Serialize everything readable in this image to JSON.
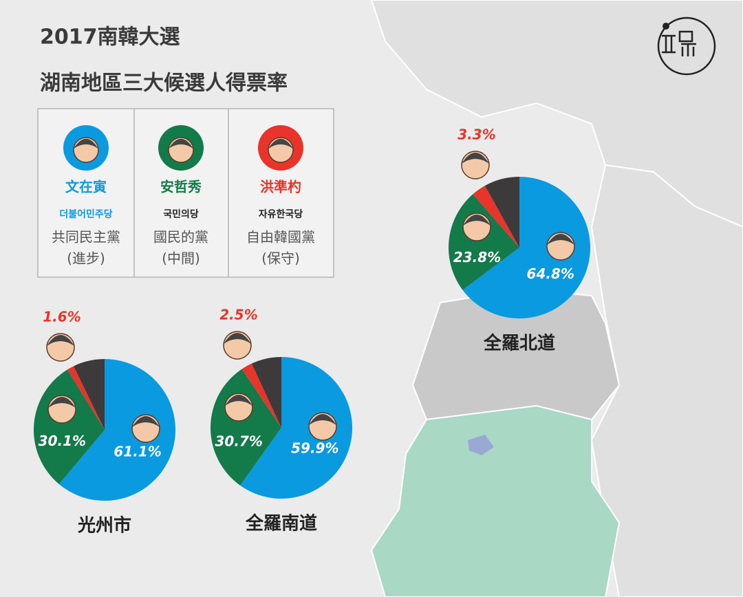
{
  "title": "2017南韓大選",
  "subtitle": "湖南地區三大候選人得票率",
  "legend": [
    {
      "name": "文在寅",
      "party_korean": "더불어민주당",
      "party": "共同民主黨",
      "stance": "(進步)",
      "color": "#0a9ae0"
    },
    {
      "name": "安哲秀",
      "party_korean": "국민의당",
      "party": "國民的黨",
      "stance": "(中間)",
      "color": "#137a4a"
    },
    {
      "name": "洪準杓",
      "party_korean": "자유한국당",
      "party": "自由韓國黨",
      "stance": "(保守)",
      "color": "#e8342a"
    }
  ],
  "chart_data": [
    {
      "type": "pie",
      "title": "光州市",
      "values": [
        61.1,
        30.1,
        1.6,
        7.2
      ],
      "value_labels": [
        "61.1%",
        "30.1%",
        "1.6%",
        null
      ],
      "colors": [
        "#0a9ae0",
        "#137a4a",
        "#e8342a",
        "#3c3a3b"
      ]
    },
    {
      "type": "pie",
      "title": "全羅南道",
      "values": [
        59.9,
        30.7,
        2.5,
        6.9
      ],
      "value_labels": [
        "59.9%",
        "30.7%",
        "2.5%",
        null
      ],
      "colors": [
        "#0a9ae0",
        "#137a4a",
        "#e8342a",
        "#3c3a3b"
      ]
    },
    {
      "type": "pie",
      "title": "全羅北道",
      "values": [
        64.8,
        23.8,
        3.3,
        8.1
      ],
      "value_labels": [
        "64.8%",
        "23.8%",
        "3.3%",
        null
      ],
      "colors": [
        "#0a9ae0",
        "#137a4a",
        "#e8342a",
        "#3c3a3b"
      ]
    }
  ]
}
